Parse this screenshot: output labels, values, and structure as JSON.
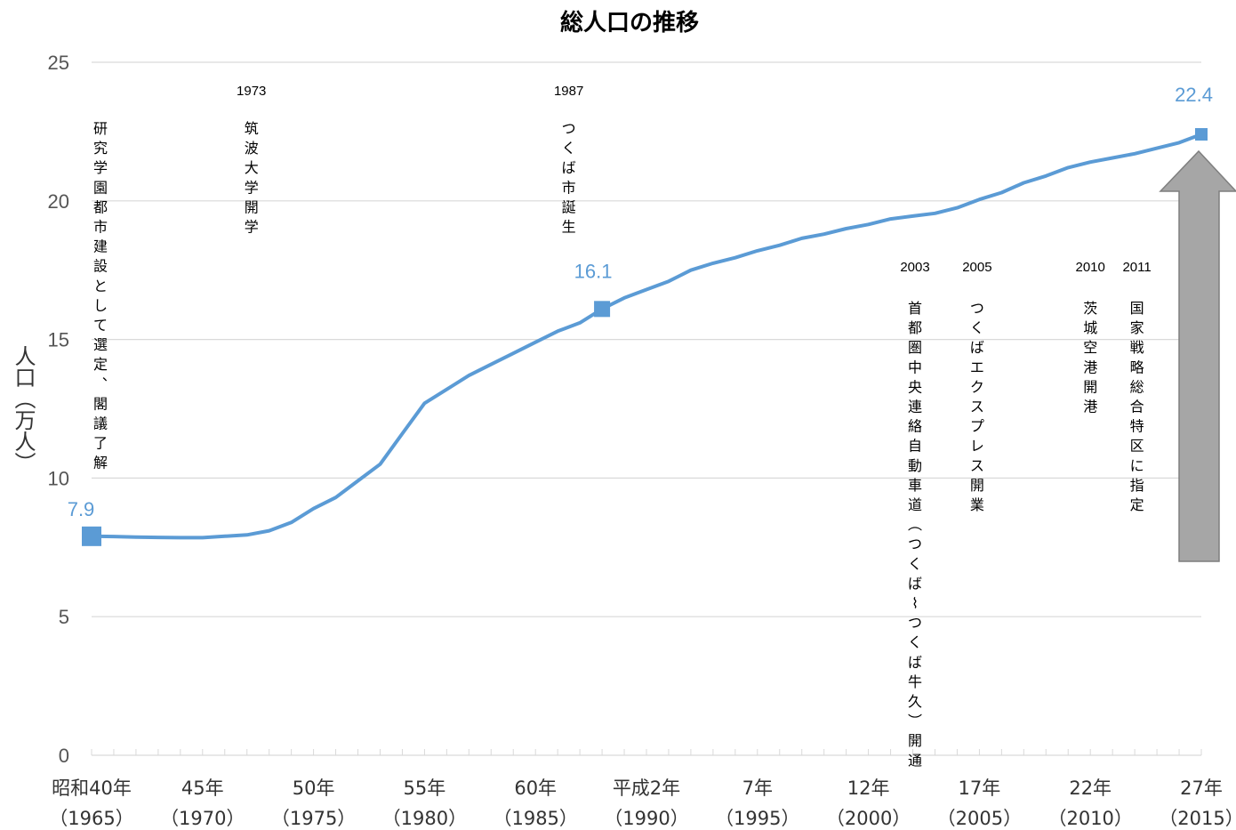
{
  "chart_data": {
    "type": "line",
    "title": "総人口の推移",
    "ylabel": "人口（万人）",
    "xlabel": "",
    "ylim": [
      0,
      25
    ],
    "yticks": [
      0,
      5,
      10,
      15,
      20,
      25
    ],
    "grid": true,
    "x": [
      1965,
      1966,
      1967,
      1968,
      1969,
      1970,
      1971,
      1972,
      1973,
      1974,
      1975,
      1976,
      1977,
      1978,
      1979,
      1980,
      1981,
      1982,
      1983,
      1984,
      1985,
      1986,
      1987,
      1988,
      1989,
      1990,
      1991,
      1992,
      1993,
      1994,
      1995,
      1996,
      1997,
      1998,
      1999,
      2000,
      2001,
      2002,
      2003,
      2004,
      2005,
      2006,
      2007,
      2008,
      2009,
      2010,
      2011,
      2012,
      2013,
      2014,
      2015
    ],
    "series": [
      {
        "values": [
          7.9,
          7.89,
          7.87,
          7.86,
          7.85,
          7.85,
          7.9,
          7.95,
          8.1,
          8.4,
          8.9,
          9.3,
          9.9,
          10.5,
          11.6,
          12.7,
          13.2,
          13.7,
          14.1,
          14.5,
          14.9,
          15.3,
          15.6,
          16.1,
          16.5,
          16.8,
          17.1,
          17.5,
          17.75,
          17.95,
          18.2,
          18.4,
          18.65,
          18.8,
          19.0,
          19.15,
          19.35,
          19.45,
          19.55,
          19.75,
          20.05,
          20.3,
          20.65,
          20.9,
          21.2,
          21.4,
          21.55,
          21.7,
          21.9,
          22.1,
          22.4
        ],
        "color": "#5b9bd5"
      }
    ],
    "data_labels": [
      {
        "x": 1965,
        "y": 7.9,
        "text": "7.9"
      },
      {
        "x": 1988,
        "y": 16.1,
        "text": "16.1"
      },
      {
        "x": 2015,
        "y": 22.4,
        "text": "22.4"
      }
    ],
    "x_tick_labels": [
      {
        "x": 1965,
        "line1": "昭和40年",
        "line2": "（1965）"
      },
      {
        "x": 1970,
        "line1": "45年",
        "line2": "（1970）"
      },
      {
        "x": 1975,
        "line1": "50年",
        "line2": "（1975）"
      },
      {
        "x": 1980,
        "line1": "55年",
        "line2": "（1980）"
      },
      {
        "x": 1985,
        "line1": "60年",
        "line2": "（1985）"
      },
      {
        "x": 1990,
        "line1": "平成2年",
        "line2": "（1990）"
      },
      {
        "x": 1995,
        "line1": "7年",
        "line2": "（1995）"
      },
      {
        "x": 2000,
        "line1": "12年",
        "line2": "（2000）"
      },
      {
        "x": 2005,
        "line1": "17年",
        "line2": "（2005）"
      },
      {
        "x": 2010,
        "line1": "22年",
        "line2": "（2010）"
      },
      {
        "x": 2015,
        "line1": "27年",
        "line2": "（2015）"
      }
    ],
    "annotations": [
      {
        "x": 1965,
        "year": "",
        "text": "研究学園都市建設として選定、閣議了解"
      },
      {
        "x": 1972.2,
        "year": "1973",
        "text": "筑波大学開学"
      },
      {
        "x": 1986.5,
        "year": "1987",
        "text": "つくば市誕生"
      },
      {
        "x": 2002.1,
        "year": "2003",
        "text": "首都圏中央連絡自動車道（つくば～つくば牛久）開通"
      },
      {
        "x": 2004.9,
        "year": "2005",
        "text": "つくばエクスプレス開業"
      },
      {
        "x": 2010,
        "year": "2010",
        "text": "茨城空港開港"
      },
      {
        "x": 2012.1,
        "year": "2011",
        "text": "国家戦略総合特区に指定"
      }
    ],
    "trend_arrow": {
      "direction": "up",
      "color": "#a6a6a6"
    }
  }
}
